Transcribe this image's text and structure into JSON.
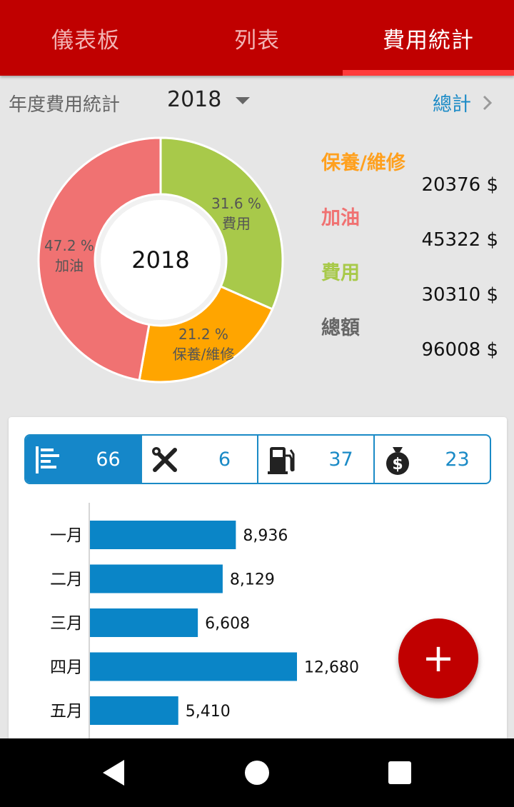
{
  "tabs": [
    {
      "label": "儀表板",
      "active": false
    },
    {
      "label": "列表",
      "active": false
    },
    {
      "label": "費用統計",
      "active": true
    }
  ],
  "subheader": {
    "title": "年度費用統計",
    "year": "2018",
    "total_link": "總計"
  },
  "donut": {
    "center_label": "2018",
    "slices": [
      {
        "name": "費用",
        "percent": 31.6,
        "percent_label": "31.6 %",
        "color": "#a8c94a"
      },
      {
        "name": "保養/維修",
        "percent": 21.2,
        "percent_label": "21.2 %",
        "color": "#ffa500"
      },
      {
        "name": "加油",
        "percent": 47.2,
        "percent_label": "47.2 %",
        "color": "#f07272"
      }
    ]
  },
  "legend": [
    {
      "name": "保養/維修",
      "value": "20376 $",
      "color": "#ffa01e"
    },
    {
      "name": "加油",
      "value": "45322 $",
      "color": "#f07272"
    },
    {
      "name": "費用",
      "value": "30310 $",
      "color": "#a8c94a"
    },
    {
      "name": "總額",
      "value": "96008 $",
      "color": "#666666"
    }
  ],
  "segments": [
    {
      "icon": "bar-list-icon",
      "count": "66",
      "active": true
    },
    {
      "icon": "tools-icon",
      "count": "6",
      "active": false
    },
    {
      "icon": "fuel-pump-icon",
      "count": "37",
      "active": false
    },
    {
      "icon": "money-bag-icon",
      "count": "23",
      "active": false
    }
  ],
  "chart_data": {
    "type": "bar",
    "orientation": "horizontal",
    "categories": [
      "一月",
      "二月",
      "三月",
      "四月",
      "五月"
    ],
    "values": [
      8936,
      8129,
      6608,
      12680,
      5410
    ],
    "value_labels": [
      "8,936",
      "8,129",
      "6,608",
      "12,680",
      "5,410"
    ],
    "bar_color": "#0a85c7",
    "grid": false
  },
  "fab": {
    "label": "+"
  },
  "colors": {
    "primary": "#c00000",
    "accent": "#1a8ac6"
  }
}
